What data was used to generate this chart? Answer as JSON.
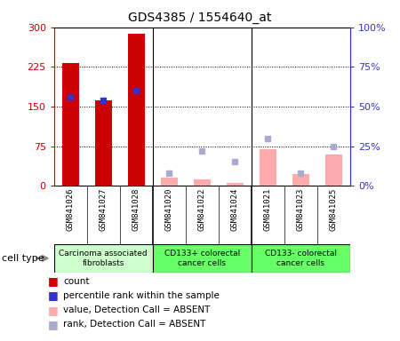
{
  "title": "GDS4385 / 1554640_at",
  "samples": [
    "GSM841026",
    "GSM841027",
    "GSM841028",
    "GSM841020",
    "GSM841022",
    "GSM841024",
    "GSM841021",
    "GSM841023",
    "GSM841025"
  ],
  "groups": [
    {
      "label": "Carcinoma associated\nfibroblasts",
      "start": 0,
      "end": 3,
      "color": "#ccffcc"
    },
    {
      "label": "CD133+ colorectal\ncancer cells",
      "start": 3,
      "end": 6,
      "color": "#66ff66"
    },
    {
      "label": "CD133- colorectal\ncancer cells",
      "start": 6,
      "end": 9,
      "color": "#66ff66"
    }
  ],
  "count_values": [
    232,
    162,
    287,
    null,
    null,
    null,
    null,
    null,
    null
  ],
  "rank_values": [
    56,
    54,
    60,
    null,
    null,
    null,
    null,
    null,
    null
  ],
  "value_absent": [
    null,
    null,
    null,
    15,
    13,
    5,
    70,
    22,
    60
  ],
  "rank_absent": [
    null,
    null,
    null,
    8,
    22,
    15,
    30,
    8,
    25
  ],
  "left_ylim": [
    0,
    300
  ],
  "right_ylim": [
    0,
    100
  ],
  "left_yticks": [
    0,
    75,
    150,
    225,
    300
  ],
  "right_yticks": [
    0,
    25,
    50,
    75,
    100
  ],
  "left_yticklabels": [
    "0",
    "75",
    "150",
    "225",
    "300"
  ],
  "right_yticklabels": [
    "0%",
    "25%",
    "50%",
    "75%",
    "100%"
  ],
  "count_color": "#cc0000",
  "rank_color": "#3333cc",
  "value_absent_color": "#ffaaaa",
  "rank_absent_color": "#aaaacc",
  "legend_items": [
    {
      "color": "#cc0000",
      "label": "count"
    },
    {
      "color": "#3333cc",
      "label": "percentile rank within the sample"
    },
    {
      "color": "#ffaaaa",
      "label": "value, Detection Call = ABSENT"
    },
    {
      "color": "#aaaacc",
      "label": "rank, Detection Call = ABSENT"
    }
  ],
  "group_label": "cell type",
  "sample_bg_color": "#cccccc",
  "chart_bg_color": "#ffffff"
}
